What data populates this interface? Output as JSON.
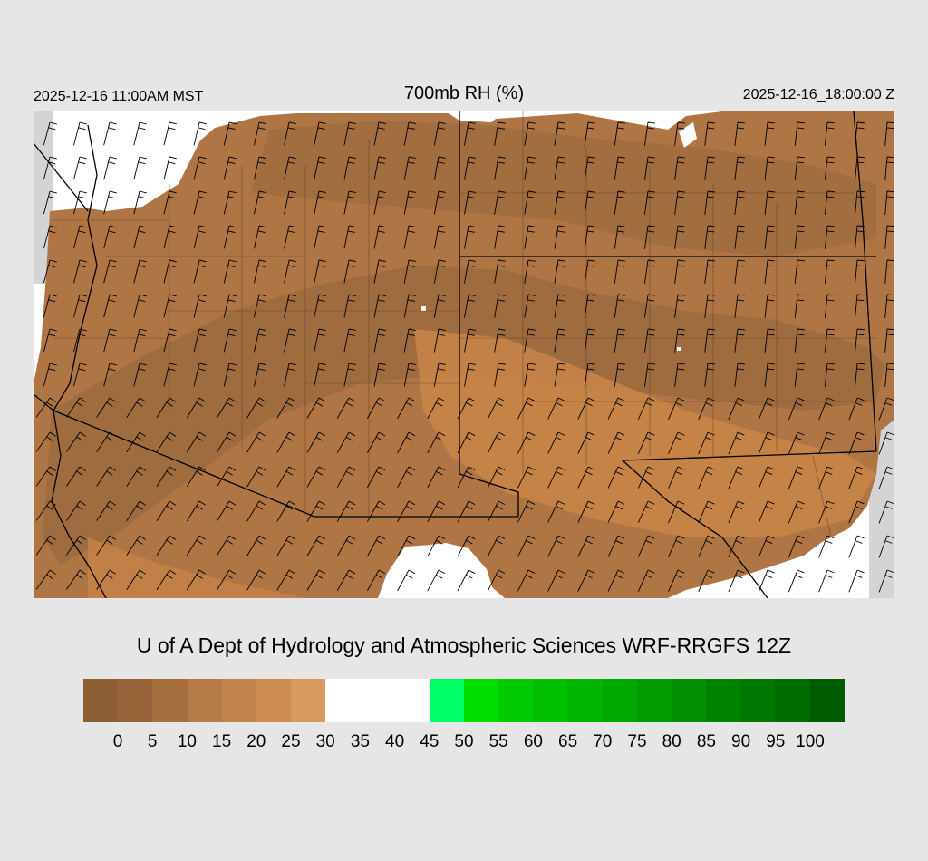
{
  "header": {
    "valid_local": "2025-12-16 11:00AM MST",
    "title": "700mb RH (%)",
    "valid_utc": "2025-12-16_18:00:00 Z"
  },
  "credit": "U of A Dept of Hydrology and Atmospheric Sciences WRF-RRGFS 12Z",
  "legend": {
    "colors": [
      "#8b5e34",
      "#98653a",
      "#a66f40",
      "#b47a47",
      "#c0834c",
      "#cc8c52",
      "#d99a5e",
      "#ffffff",
      "#ffffff",
      "#ffffff",
      "#00ff66",
      "#00e000",
      "#00cc00",
      "#00c000",
      "#00b400",
      "#00a800",
      "#009c00",
      "#009000",
      "#008400",
      "#007800",
      "#006c00",
      "#005c00"
    ],
    "labels": [
      "0",
      "5",
      "10",
      "15",
      "20",
      "25",
      "30",
      "35",
      "40",
      "45",
      "50",
      "55",
      "60",
      "65",
      "70",
      "75",
      "80",
      "85",
      "90",
      "95",
      "100"
    ]
  },
  "colors": {
    "dry_dark": "#9c6b3f",
    "dry_mid": "#b07544",
    "dry_light": "#cc8748",
    "moist_white": "#ffffff",
    "outside": "#d4d4d4"
  }
}
